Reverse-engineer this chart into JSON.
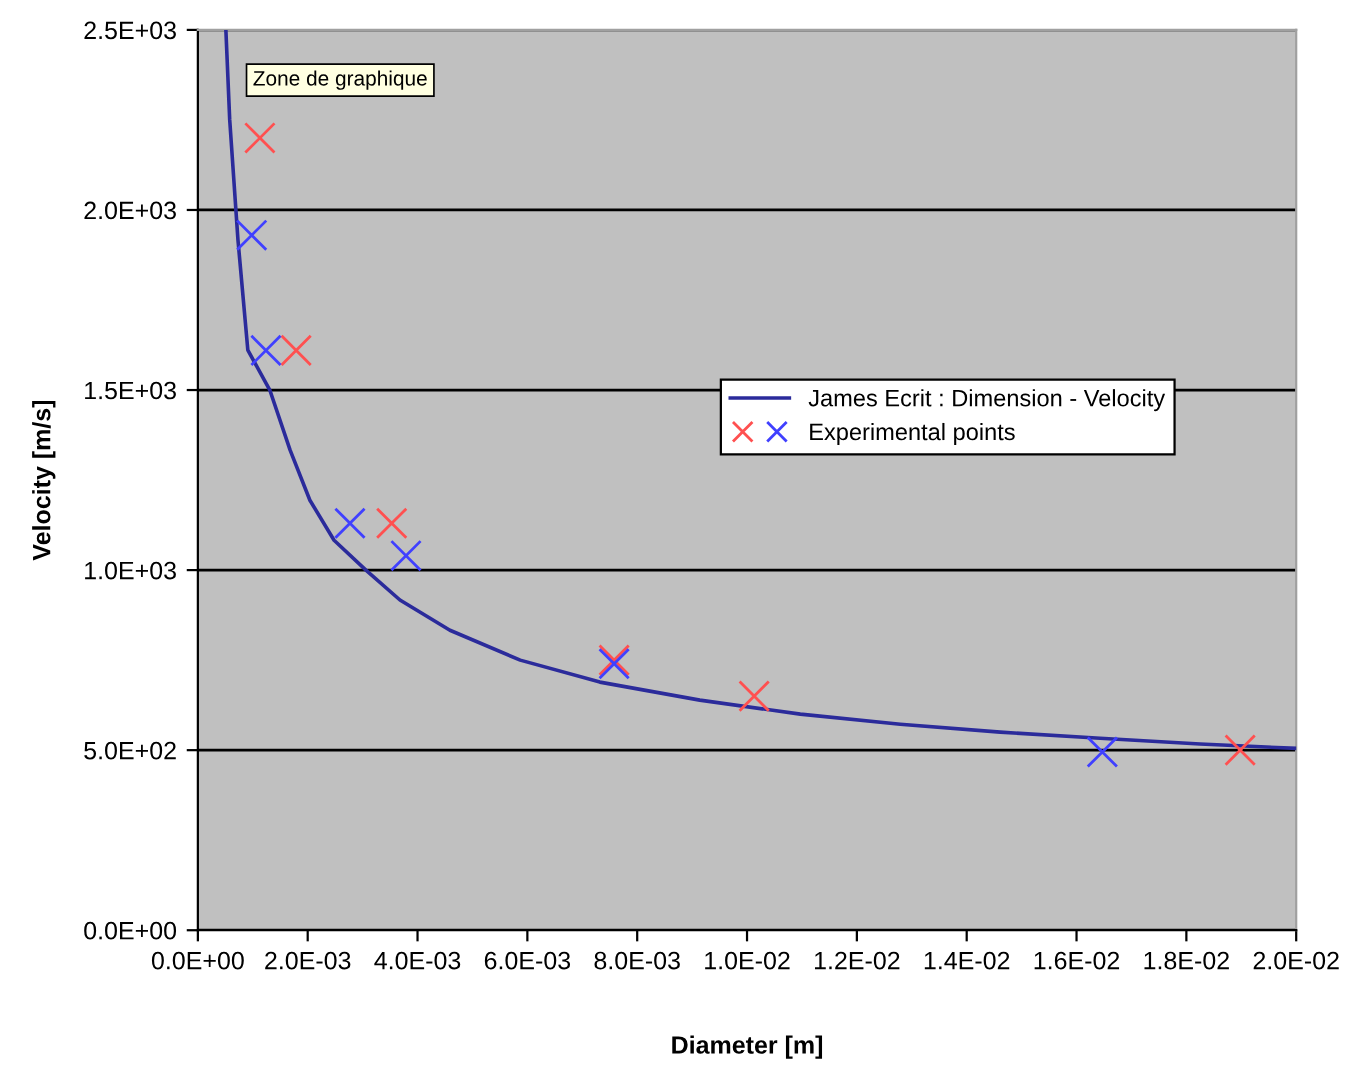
{
  "chart_data": {
    "type": "scatter",
    "xlabel": "Diameter [m]",
    "ylabel": "Velocity [m/s]",
    "annotations": [
      "Zone de graphique"
    ],
    "xlim": [
      0,
      0.02
    ],
    "ylim": [
      0,
      2500
    ],
    "xticks": [
      {
        "value": 0,
        "label": "0.0E+00"
      },
      {
        "value": 0.002,
        "label": "2.0E-03"
      },
      {
        "value": 0.004,
        "label": "4.0E-03"
      },
      {
        "value": 0.006,
        "label": "6.0E-03"
      },
      {
        "value": 0.008,
        "label": "8.0E-03"
      },
      {
        "value": 0.01,
        "label": "1.0E-02"
      },
      {
        "value": 0.012,
        "label": "1.2E-02"
      },
      {
        "value": 0.014,
        "label": "1.4E-02"
      },
      {
        "value": 0.016,
        "label": "1.6E-02"
      },
      {
        "value": 0.018,
        "label": "1.8E-02"
      },
      {
        "value": 0.02,
        "label": "2.0E-02"
      }
    ],
    "yticks": [
      {
        "value": 0,
        "label": "0.0E+00"
      },
      {
        "value": 500,
        "label": "5.0E+02"
      },
      {
        "value": 1000,
        "label": "1.0E+03"
      },
      {
        "value": 1500,
        "label": "1.5E+03"
      },
      {
        "value": 2000,
        "label": "2.0E+03"
      },
      {
        "value": 2500,
        "label": "2.5E+03"
      }
    ],
    "grid": "y",
    "legend": "right",
    "series": [
      {
        "name": "James Ecrit : Dimension - Velocity",
        "type": "line",
        "color": "#2b2b9b",
        "marker": "none",
        "line_style": "solid",
        "x": [
          0.00051,
          0.00058,
          0.00073,
          0.00091,
          0.00131,
          0.00168,
          0.00204,
          0.00248,
          0.00306,
          0.00368,
          0.00459,
          0.00587,
          0.00732,
          0.00914,
          0.01097,
          0.01279,
          0.01461,
          0.01643,
          0.01825,
          0.02
        ],
        "values": [
          2500,
          2250,
          1917,
          1611,
          1500,
          1333,
          1194,
          1083,
          1000,
          917,
          833,
          750,
          689,
          639,
          600,
          572,
          550,
          533,
          517,
          505
        ]
      },
      {
        "name": "Experimental points",
        "marker": "cross",
        "x": [
          0.00113,
          0.00179,
          0.00353,
          0.00758,
          0.01013,
          0.01898,
          0.00098,
          0.00124,
          0.00277,
          0.00379,
          0.00758,
          0.01647
        ],
        "values": [
          2200,
          1610,
          1130,
          750,
          650,
          500,
          1930,
          1610,
          1130,
          1040,
          740,
          495
        ],
        "colors": [
          "#ff5050",
          "#ff5050",
          "#ff5050",
          "#ff5050",
          "#ff5050",
          "#ff5050",
          "#4040ff",
          "#4040ff",
          "#4040ff",
          "#4040ff",
          "#4040ff",
          "#4040ff"
        ]
      }
    ]
  }
}
